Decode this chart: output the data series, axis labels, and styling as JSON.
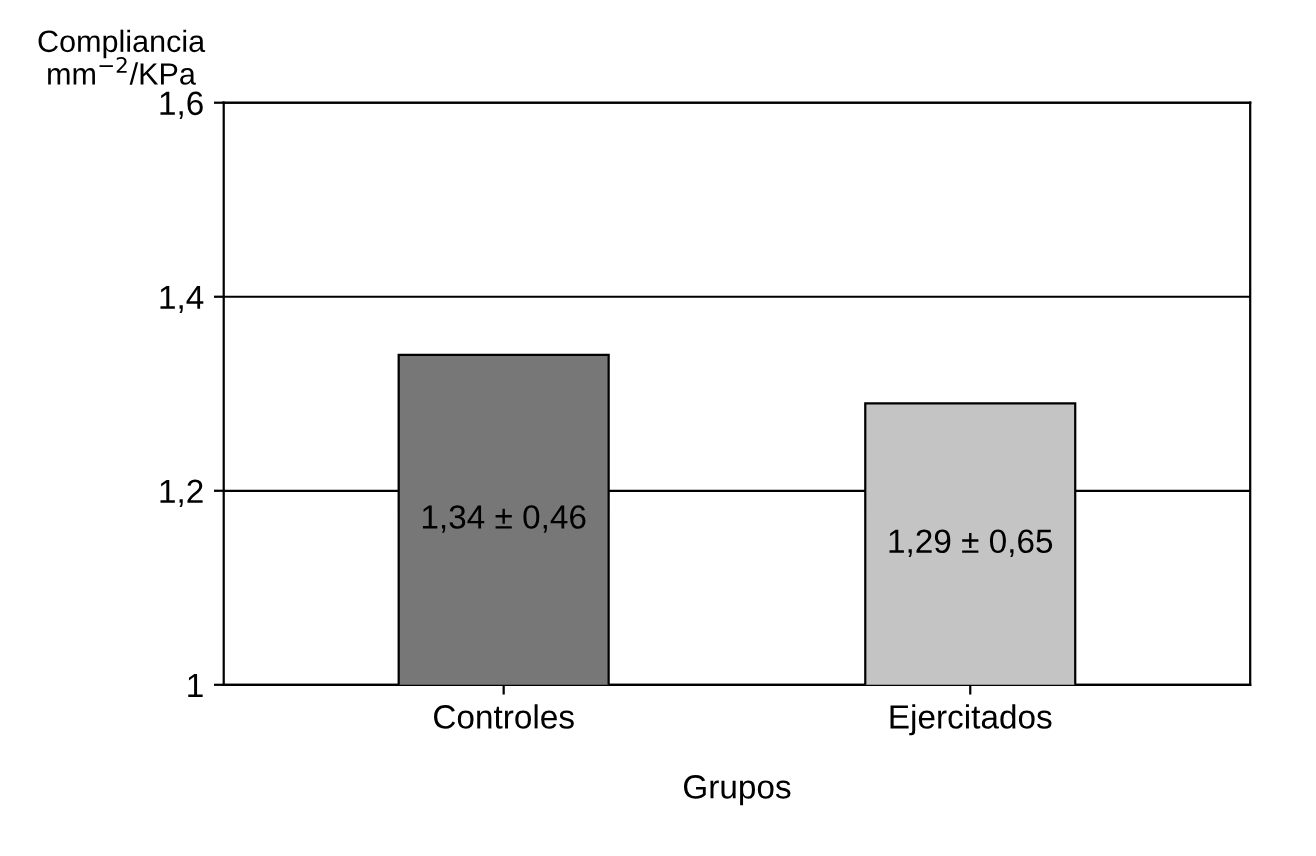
{
  "chart_data": {
    "type": "bar",
    "xlabel": "Grupos",
    "ylabel": "Compliancia\nmm$^{−2}$/KPa",
    "categories": [
      "Controles",
      "Ejercitados"
    ],
    "values": [
      1.34,
      1.29
    ],
    "colors": [
      "#777777",
      "#c4c4c4"
    ],
    "value_labels": [
      "1,34 ± 0,46",
      "1,29 ± 0,65"
    ],
    "ylim": [
      1,
      1.6
    ],
    "yticks": [
      1,
      {
        "value": 1.2,
        "label": "1,2"
      },
      {
        "value": 1.4,
        "label": "1,4"
      },
      {
        "value": 1.6,
        "label": "1,6"
      }
    ],
    "grid": "y",
    "legend": false
  }
}
